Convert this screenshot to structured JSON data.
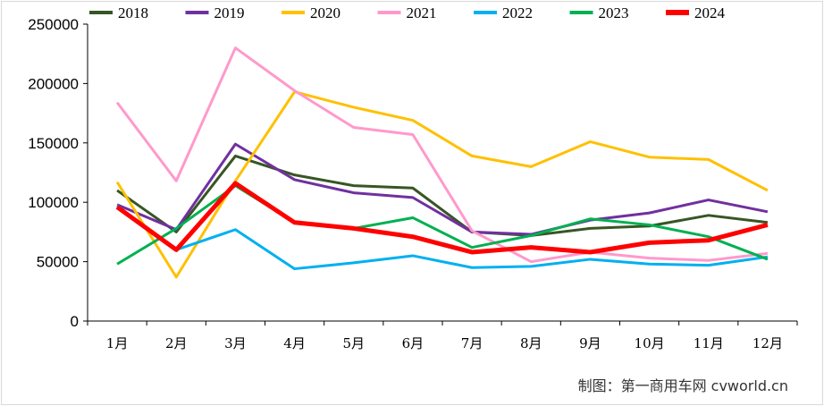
{
  "chart_data": {
    "type": "line",
    "categories": [
      "1月",
      "2月",
      "3月",
      "4月",
      "5月",
      "6月",
      "7月",
      "8月",
      "9月",
      "10月",
      "11月",
      "12月"
    ],
    "ylim": [
      0,
      250000
    ],
    "yticks": [
      0,
      50000,
      100000,
      150000,
      200000,
      250000
    ],
    "grid": false,
    "legend": "top",
    "series": [
      {
        "name": "2018",
        "color": "#375623",
        "width": 3,
        "values": [
          110000,
          75000,
          139000,
          123000,
          114000,
          112000,
          75000,
          72000,
          78000,
          80000,
          89000,
          83000
        ]
      },
      {
        "name": "2019",
        "color": "#7030a0",
        "width": 3,
        "values": [
          98000,
          77000,
          149000,
          119000,
          108000,
          104000,
          75000,
          73000,
          85000,
          91000,
          102000,
          92000
        ]
      },
      {
        "name": "2020",
        "color": "#ffc000",
        "width": 3,
        "values": [
          117000,
          37000,
          118000,
          193000,
          180000,
          169000,
          139000,
          130000,
          151000,
          138000,
          136000,
          110000
        ]
      },
      {
        "name": "2021",
        "color": "#ff99cc",
        "width": 3,
        "values": [
          184000,
          118000,
          230000,
          194000,
          163000,
          157000,
          76000,
          50000,
          58000,
          53000,
          51000,
          57000
        ]
      },
      {
        "name": "2022",
        "color": "#00b0f0",
        "width": 3,
        "values": [
          97000,
          60000,
          77000,
          44000,
          49000,
          55000,
          45000,
          46000,
          52000,
          48000,
          47000,
          54000
        ]
      },
      {
        "name": "2023",
        "color": "#00b050",
        "width": 3,
        "values": [
          48000,
          78000,
          114000,
          83000,
          78000,
          87000,
          62000,
          72000,
          86000,
          81000,
          71000,
          52000
        ]
      },
      {
        "name": "2024",
        "color": "#ff0000",
        "width": 5,
        "values": [
          96000,
          60000,
          116000,
          83000,
          78000,
          71000,
          58000,
          62000,
          58000,
          66000,
          68000,
          81000
        ]
      }
    ]
  },
  "source": "制图：第一商用车网  cvworld.cn"
}
